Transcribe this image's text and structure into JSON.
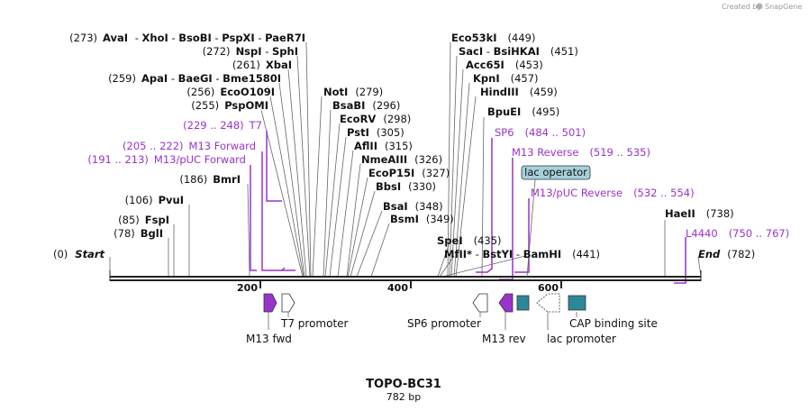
{
  "credit": {
    "text": "Created by",
    "brand": "SnapGene"
  },
  "map": {
    "title": "TOPO-BC31",
    "length": "782 bp"
  },
  "colors": {
    "primer": "#9933cc",
    "feature_teal": "#2e8799",
    "operator_fill": "#a6d1dc",
    "line": "#666666"
  },
  "ends": {
    "start": {
      "pos": "(0)",
      "name": "Start"
    },
    "end": {
      "pos": "(782)",
      "name": "End"
    }
  },
  "left_sites": [
    {
      "pos": "(273)",
      "names": [
        "AvaI",
        "XhoI",
        "BsoBI",
        "PspXI",
        "PaeR7I"
      ]
    },
    {
      "pos": "(272)",
      "names": [
        "NspI",
        "SphI"
      ]
    },
    {
      "pos": "(261)",
      "names": [
        "XbaI"
      ]
    },
    {
      "pos": "(259)",
      "names": [
        "ApaI",
        "BaeGI",
        "Bme1580I"
      ]
    },
    {
      "pos": "(256)",
      "names": [
        "EcoO109I"
      ]
    },
    {
      "pos": "(255)",
      "names": [
        "PspOMI"
      ]
    },
    {
      "pos": "(186)",
      "names": [
        "BmrI"
      ]
    },
    {
      "pos": "(106)",
      "names": [
        "PvuI"
      ]
    },
    {
      "pos": "(85)",
      "names": [
        "FspI"
      ]
    },
    {
      "pos": "(78)",
      "names": [
        "BglI"
      ]
    }
  ],
  "mid_sites": [
    {
      "name": "NotI",
      "pos": "(279)"
    },
    {
      "name": "BsaBI",
      "pos": "(296)"
    },
    {
      "name": "EcoRV",
      "pos": "(298)"
    },
    {
      "name": "PstI",
      "pos": "(305)"
    },
    {
      "name": "AflII",
      "pos": "(315)"
    },
    {
      "name": "NmeAIII",
      "pos": "(326)"
    },
    {
      "name": "EcoP15I",
      "pos": "(327)"
    },
    {
      "name": "BbsI",
      "pos": "(330)"
    },
    {
      "name": "BsaI",
      "pos": "(348)"
    },
    {
      "name": "BsmI",
      "pos": "(349)"
    }
  ],
  "right_sites": [
    {
      "names": [
        "Eco53kI"
      ],
      "pos": "(449)"
    },
    {
      "names": [
        "SacI",
        "BsiHKAI"
      ],
      "pos": "(451)"
    },
    {
      "names": [
        "Acc65I"
      ],
      "pos": "(453)"
    },
    {
      "names": [
        "KpnI"
      ],
      "pos": "(457)"
    },
    {
      "names": [
        "HindIII"
      ],
      "pos": "(459)"
    },
    {
      "names": [
        "BpuEI"
      ],
      "pos": "(495)"
    }
  ],
  "lower_sites": {
    "spei": {
      "name": "SpeI",
      "pos": "(435)"
    },
    "mfli": {
      "name": "MfII",
      "star": "*"
    },
    "bstyi": {
      "name": "BstYI"
    },
    "bamhi": {
      "name": "BamHI",
      "pos": "(441)"
    },
    "haeii": {
      "name": "HaeII",
      "pos": "(738)"
    }
  },
  "primers": [
    {
      "range": "(229 .. 248)",
      "name": "T7"
    },
    {
      "range": "(205 .. 222)",
      "name": "M13 Forward"
    },
    {
      "range": "(191 .. 213)",
      "name": "M13/pUC Forward"
    },
    {
      "name": "SP6",
      "range": "(484 .. 501)"
    },
    {
      "name": "M13 Reverse",
      "range": "(519 .. 535)"
    },
    {
      "name": "M13/pUC Reverse",
      "range": "(532 .. 554)"
    },
    {
      "name": "L4440",
      "range": "(750 .. 767)"
    }
  ],
  "lac_operator": "lac operator",
  "ruler": [
    "200",
    "400",
    "600"
  ],
  "features": {
    "t7_promoter": "T7 promoter",
    "m13_fwd": "M13 fwd",
    "sp6_promoter": "SP6 promoter",
    "m13_rev": "M13 rev",
    "lac_promoter": "lac promoter",
    "cap_site": "CAP binding site"
  }
}
